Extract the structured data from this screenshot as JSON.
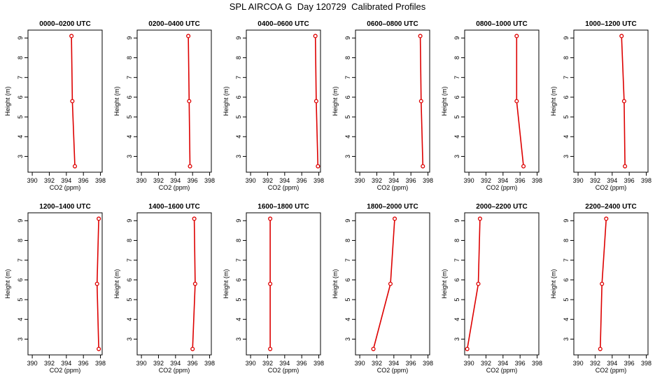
{
  "title": "SPL AIRCOA G  Day 120729  Calibrated Profiles",
  "colors": {
    "profile_line": "#dd0000",
    "axis": "#000000"
  },
  "chart_data": [
    {
      "type": "line",
      "title": "0000–0200 UTC",
      "xlabel": "CO2 (ppm)",
      "ylabel": "Height (m)",
      "xlim": [
        389.5,
        398.2
      ],
      "ylim": [
        2.2,
        9.4
      ],
      "xticks": [
        390,
        392,
        394,
        396,
        398
      ],
      "yticks": [
        3,
        4,
        5,
        6,
        7,
        8,
        9
      ],
      "series": [
        {
          "x": [
            395.0,
            394.7,
            394.6
          ],
          "y": [
            2.5,
            5.8,
            9.1
          ]
        }
      ]
    },
    {
      "type": "line",
      "title": "0200–0400 UTC",
      "xlabel": "CO2 (ppm)",
      "ylabel": "Height (m)",
      "xlim": [
        389.5,
        398.2
      ],
      "ylim": [
        2.2,
        9.4
      ],
      "xticks": [
        390,
        392,
        394,
        396,
        398
      ],
      "yticks": [
        3,
        4,
        5,
        6,
        7,
        8,
        9
      ],
      "series": [
        {
          "x": [
            395.7,
            395.6,
            395.5
          ],
          "y": [
            2.5,
            5.8,
            9.1
          ]
        }
      ]
    },
    {
      "type": "line",
      "title": "0400–0600 UTC",
      "xlabel": "CO2 (ppm)",
      "ylabel": "Height (m)",
      "xlim": [
        389.5,
        398.2
      ],
      "ylim": [
        2.2,
        9.4
      ],
      "xticks": [
        390,
        392,
        394,
        396,
        398
      ],
      "yticks": [
        3,
        4,
        5,
        6,
        7,
        8,
        9
      ],
      "series": [
        {
          "x": [
            397.9,
            397.7,
            397.6
          ],
          "y": [
            2.5,
            5.8,
            9.1
          ]
        }
      ]
    },
    {
      "type": "line",
      "title": "0600–0800 UTC",
      "xlabel": "CO2 (ppm)",
      "ylabel": "Height (m)",
      "xlim": [
        389.5,
        398.2
      ],
      "ylim": [
        2.2,
        9.4
      ],
      "xticks": [
        390,
        392,
        394,
        396,
        398
      ],
      "yticks": [
        3,
        4,
        5,
        6,
        7,
        8,
        9
      ],
      "series": [
        {
          "x": [
            397.4,
            397.2,
            397.1
          ],
          "y": [
            2.5,
            5.8,
            9.1
          ]
        }
      ]
    },
    {
      "type": "line",
      "title": "0800–1000 UTC",
      "xlabel": "CO2 (ppm)",
      "ylabel": "Height (m)",
      "xlim": [
        389.5,
        398.2
      ],
      "ylim": [
        2.2,
        9.4
      ],
      "xticks": [
        390,
        392,
        394,
        396,
        398
      ],
      "yticks": [
        3,
        4,
        5,
        6,
        7,
        8,
        9
      ],
      "series": [
        {
          "x": [
            396.4,
            395.6,
            395.6
          ],
          "y": [
            2.5,
            5.8,
            9.1
          ]
        }
      ]
    },
    {
      "type": "line",
      "title": "1000–1200 UTC",
      "xlabel": "CO2 (ppm)",
      "ylabel": "Height (m)",
      "xlim": [
        389.5,
        398.2
      ],
      "ylim": [
        2.2,
        9.4
      ],
      "xticks": [
        390,
        392,
        394,
        396,
        398
      ],
      "yticks": [
        3,
        4,
        5,
        6,
        7,
        8,
        9
      ],
      "series": [
        {
          "x": [
            395.5,
            395.4,
            395.1
          ],
          "y": [
            2.5,
            5.8,
            9.1
          ]
        }
      ]
    },
    {
      "type": "line",
      "title": "1200–1400 UTC",
      "xlabel": "CO2 (ppm)",
      "ylabel": "Height (m)",
      "xlim": [
        389.5,
        398.2
      ],
      "ylim": [
        2.2,
        9.4
      ],
      "xticks": [
        390,
        392,
        394,
        396,
        398
      ],
      "yticks": [
        3,
        4,
        5,
        6,
        7,
        8,
        9
      ],
      "series": [
        {
          "x": [
            397.8,
            397.6,
            397.8
          ],
          "y": [
            2.5,
            5.8,
            9.1
          ]
        }
      ]
    },
    {
      "type": "line",
      "title": "1400–1600 UTC",
      "xlabel": "CO2 (ppm)",
      "ylabel": "Height (m)",
      "xlim": [
        389.5,
        398.2
      ],
      "ylim": [
        2.2,
        9.4
      ],
      "xticks": [
        390,
        392,
        394,
        396,
        398
      ],
      "yticks": [
        3,
        4,
        5,
        6,
        7,
        8,
        9
      ],
      "series": [
        {
          "x": [
            396.0,
            396.3,
            396.2
          ],
          "y": [
            2.5,
            5.8,
            9.1
          ]
        }
      ]
    },
    {
      "type": "line",
      "title": "1600–1800 UTC",
      "xlabel": "CO2 (ppm)",
      "ylabel": "Height (m)",
      "xlim": [
        389.5,
        398.2
      ],
      "ylim": [
        2.2,
        9.4
      ],
      "xticks": [
        390,
        392,
        394,
        396,
        398
      ],
      "yticks": [
        3,
        4,
        5,
        6,
        7,
        8,
        9
      ],
      "series": [
        {
          "x": [
            392.3,
            392.3,
            392.3
          ],
          "y": [
            2.5,
            5.8,
            9.1
          ]
        }
      ]
    },
    {
      "type": "line",
      "title": "1800–2000 UTC",
      "xlabel": "CO2 (ppm)",
      "ylabel": "Height (m)",
      "xlim": [
        389.5,
        398.2
      ],
      "ylim": [
        2.2,
        9.4
      ],
      "xticks": [
        390,
        392,
        394,
        396,
        398
      ],
      "yticks": [
        3,
        4,
        5,
        6,
        7,
        8,
        9
      ],
      "series": [
        {
          "x": [
            391.6,
            393.6,
            394.1
          ],
          "y": [
            2.5,
            5.8,
            9.1
          ]
        }
      ]
    },
    {
      "type": "line",
      "title": "2000–2200 UTC",
      "xlabel": "CO2 (ppm)",
      "ylabel": "Height (m)",
      "xlim": [
        389.5,
        398.2
      ],
      "ylim": [
        2.2,
        9.4
      ],
      "xticks": [
        390,
        392,
        394,
        396,
        398
      ],
      "yticks": [
        3,
        4,
        5,
        6,
        7,
        8,
        9
      ],
      "series": [
        {
          "x": [
            389.8,
            391.1,
            391.3
          ],
          "y": [
            2.5,
            5.8,
            9.1
          ]
        }
      ]
    },
    {
      "type": "line",
      "title": "2200–2400 UTC",
      "xlabel": "CO2 (ppm)",
      "ylabel": "Height (m)",
      "xlim": [
        389.5,
        398.2
      ],
      "ylim": [
        2.2,
        9.4
      ],
      "xticks": [
        390,
        392,
        394,
        396,
        398
      ],
      "yticks": [
        3,
        4,
        5,
        6,
        7,
        8,
        9
      ],
      "series": [
        {
          "x": [
            392.6,
            392.8,
            393.3
          ],
          "y": [
            2.5,
            5.8,
            9.1
          ]
        }
      ]
    }
  ]
}
